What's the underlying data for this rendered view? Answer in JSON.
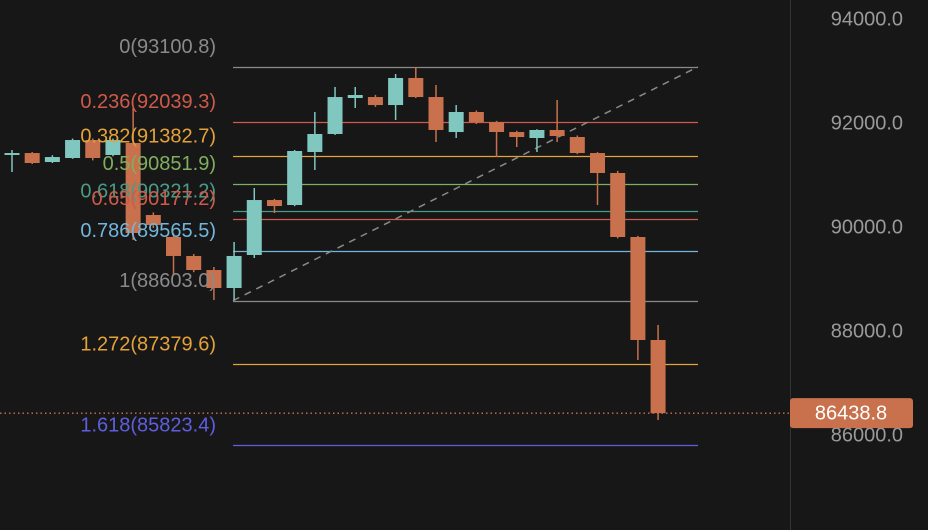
{
  "chart_data": {
    "type": "candlestick",
    "open": [
      91404,
      91442,
      91269,
      91346,
      91692,
      91404,
      91635,
      90250,
      89827,
      89462,
      89192,
      88846,
      89481,
      90538,
      90442,
      91462,
      91808,
      92500,
      92519,
      92365,
      92885,
      92519,
      91846,
      92231,
      92038,
      91846,
      91731,
      91885,
      91750,
      91442,
      91058,
      89827,
      87846
    ],
    "high": [
      91500,
      91462,
      91400,
      91720,
      91720,
      91720,
      92308,
      90300,
      89900,
      89500,
      89250,
      89731,
      90769,
      90560,
      91500,
      92231,
      92712,
      92712,
      92560,
      92962,
      93096,
      92750,
      92365,
      92260,
      92060,
      91870,
      91900,
      92462,
      91780,
      91460,
      91100,
      89850,
      88135
    ],
    "low": [
      91077,
      91230,
      91250,
      91330,
      91300,
      91380,
      89769,
      90000,
      89096,
      89150,
      88615,
      88615,
      89423,
      90288,
      90420,
      91115,
      91790,
      92308,
      92330,
      92077,
      92500,
      91654,
      91731,
      92000,
      91365,
      91558,
      91462,
      91654,
      91420,
      90442,
      89800,
      87462,
      86308
    ],
    "close": [
      91442,
      91250,
      91365,
      91692,
      91346,
      91692,
      89904,
      90058,
      89462,
      89192,
      88846,
      89462,
      90538,
      90423,
      91481,
      91808,
      92519,
      92558,
      92365,
      92885,
      92519,
      91885,
      92231,
      92038,
      91846,
      91750,
      91885,
      91769,
      91442,
      91058,
      89827,
      87846,
      86438.8
    ],
    "up_color": "#7fc7bf",
    "down_color": "#c8714c",
    "ylim": [
      84192,
      94385
    ],
    "yticks": [
      {
        "value": 86000,
        "label": "86000.0"
      },
      {
        "value": 88000,
        "label": "88000.0"
      },
      {
        "value": 90000,
        "label": "90000.0"
      },
      {
        "value": 92000,
        "label": "92000.0"
      },
      {
        "value": 94000,
        "label": "94000.0"
      }
    ],
    "fib": {
      "levels": [
        93100.8,
        92039.3,
        91382.7,
        90851.9,
        90321.2,
        90177.2,
        89565.5,
        88603.0,
        87379.6,
        85823.4
      ],
      "level_labels": [
        "0(93100.8)",
        "0.236(92039.3)",
        "0.382(91382.7)",
        "0.5(90851.9)",
        "0.618(90321.2)",
        "0.65(90177.2)",
        "0.786(89565.5)",
        "1(88603.0)",
        "1.272(87379.6)",
        "1.618(85823.4)"
      ],
      "colors": [
        "#8a8a8a",
        "#cf5a4b",
        "#e3a23a",
        "#7fae5e",
        "#4a9a86",
        "#cf5a4b",
        "#72b6dc",
        "#8a8a8a",
        "#e3a23a",
        "#5e5ee0"
      ]
    },
    "current_price": 86438.8,
    "current_price_color": "#c8714c"
  }
}
